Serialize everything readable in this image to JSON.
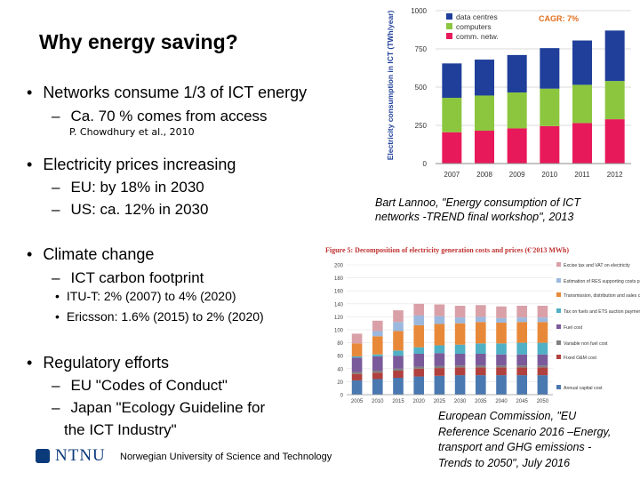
{
  "slide": {
    "title": "Why energy saving?",
    "bullets": [
      {
        "text": "Networks consume 1/3 of ICT energy",
        "level": 1
      },
      {
        "text": "Ca. 70 % comes from access",
        "level": 2
      },
      {
        "text": "P. Chowdhury et al., 2010",
        "level": 4
      },
      {
        "text": "Electricity prices increasing",
        "level": 1
      },
      {
        "text": "EU: by 18% in 2030",
        "level": 2
      },
      {
        "text": "US: ca. 12% in 2030",
        "level": 2
      },
      {
        "text": "Climate change",
        "level": 1
      },
      {
        "text": "ICT carbon footprint",
        "level": 2
      },
      {
        "text": "ITU-T: 2% (2007) to 4% (2020)",
        "level": 3
      },
      {
        "text": "Ericsson: 1.6% (2015) to 2% (2020)",
        "level": 3
      },
      {
        "text": "Regulatory efforts",
        "level": 1
      },
      {
        "text": "EU \"Codes of Conduct\"",
        "level": 2
      },
      {
        "text": "Japan \"Ecology Guideline for",
        "level": 2
      },
      {
        "text": "the ICT Industry\"",
        "level": 2
      }
    ],
    "caption1": [
      "Bart Lannoo, \"Energy consumption of ICT",
      "networks -TREND final workshop\", 2013"
    ],
    "caption2": [
      "European Commission, \"EU",
      "Reference Scenario 2016 –Energy,",
      "transport and GHG emissions -",
      "Trends to 2050\", July 2016"
    ],
    "footer": {
      "logo": "NTNU",
      "org": "Norwegian University of Science and Technology"
    }
  },
  "chart_data": [
    {
      "type": "bar",
      "ylabel": "Electricity consumption in ICT (TWh/year)",
      "annotation": "CAGR: 7%",
      "categories": [
        "2007",
        "2008",
        "2009",
        "2010",
        "2011",
        "2012"
      ],
      "yticks": [
        0,
        250,
        500,
        750,
        1000
      ],
      "ylim": [
        0,
        1000
      ],
      "series": [
        {
          "name": "comm. netw.",
          "color": "#e8195a",
          "values": [
            205,
            215,
            230,
            245,
            265,
            290
          ]
        },
        {
          "name": "computers",
          "color": "#8cc63f",
          "values": [
            225,
            230,
            235,
            245,
            250,
            250
          ]
        },
        {
          "name": "data centres",
          "color": "#1f3f9a",
          "values": [
            225,
            235,
            245,
            265,
            290,
            330
          ]
        }
      ]
    },
    {
      "type": "bar",
      "title": "Figure 5: Decomposition of electricity generation costs and prices (€'2013 MWh)",
      "categories": [
        "2005",
        "2010",
        "2015",
        "2020",
        "2025",
        "2030",
        "2035",
        "2040",
        "2045",
        "2050"
      ],
      "yticks": [
        0,
        20,
        40,
        60,
        80,
        100,
        120,
        140,
        160,
        180,
        200
      ],
      "ylim": [
        0,
        200
      ],
      "series": [
        {
          "name": "Annual capital cost",
          "color": "#4a78b0",
          "values": [
            22,
            24,
            26,
            28,
            29,
            30,
            30,
            30,
            30,
            30
          ]
        },
        {
          "name": "Fixed O&M cost",
          "color": "#b0413e",
          "values": [
            10,
            10,
            11,
            12,
            12,
            12,
            12,
            12,
            12,
            12
          ]
        },
        {
          "name": "Variable non fuel cost",
          "color": "#7f7f7f",
          "values": [
            3,
            3,
            3,
            3,
            3,
            3,
            3,
            3,
            3,
            3
          ]
        },
        {
          "name": "Fuel cost",
          "color": "#7a5a9a",
          "values": [
            22,
            22,
            20,
            20,
            20,
            18,
            18,
            17,
            17,
            17
          ]
        },
        {
          "name": "Tax on fuels and ETS auction payments",
          "color": "#4fb0c6",
          "values": [
            2,
            3,
            8,
            10,
            12,
            14,
            16,
            17,
            18,
            18
          ]
        },
        {
          "name": "Transmission, distribution and sales costs",
          "color": "#e8893a",
          "values": [
            20,
            28,
            30,
            34,
            33,
            33,
            33,
            32,
            32,
            32
          ]
        },
        {
          "name": "Estimation of RES supporting costs passed on to consumers",
          "color": "#9bb8de",
          "values": [
            0,
            8,
            14,
            15,
            12,
            9,
            8,
            7,
            7,
            7
          ]
        },
        {
          "name": "Excise tax and VAT on electricity",
          "color": "#d9a0a8",
          "values": [
            15,
            16,
            18,
            18,
            18,
            18,
            18,
            18,
            18,
            18
          ]
        }
      ]
    }
  ]
}
